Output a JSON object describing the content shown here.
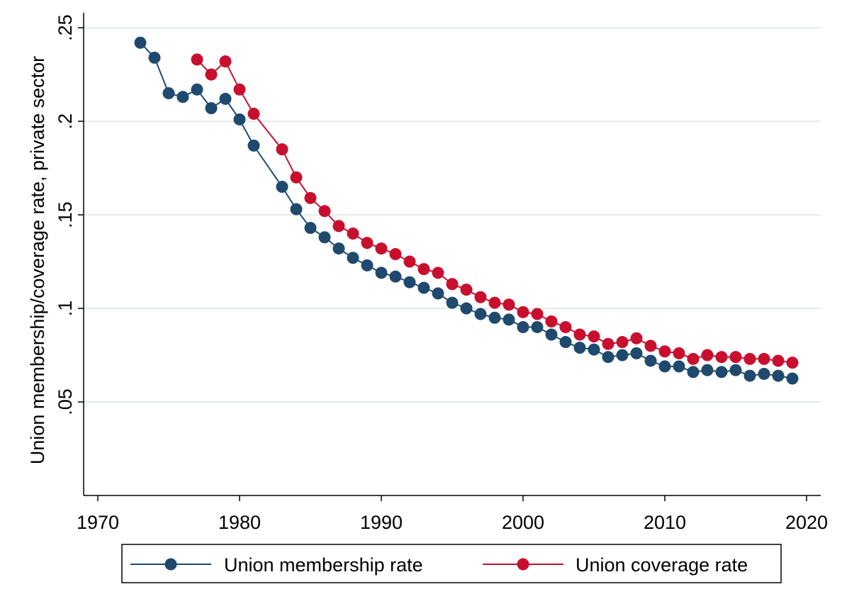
{
  "chart_data": {
    "type": "line",
    "title": "",
    "xlabel": "",
    "ylabel": "Union membership/coverage rate, private sector",
    "xlim": [
      1969,
      2021
    ],
    "ylim": [
      0,
      0.258
    ],
    "x_ticks": [
      1970,
      1980,
      1990,
      2000,
      2010,
      2020
    ],
    "x_tick_labels": [
      "1970",
      "1980",
      "1990",
      "2000",
      "2010",
      "2020"
    ],
    "y_ticks": [
      0.05,
      0.1,
      0.15,
      0.2,
      0.25
    ],
    "y_tick_labels": [
      ".05",
      ".1",
      ".15",
      ".2",
      ".25"
    ],
    "grid": true,
    "legend_position": "bottom",
    "series": [
      {
        "name": "Union membership rate",
        "color": "#1f4a6e",
        "x": [
          1973,
          1974,
          1975,
          1976,
          1977,
          1978,
          1979,
          1980,
          1981,
          1983,
          1984,
          1985,
          1986,
          1987,
          1988,
          1989,
          1990,
          1991,
          1992,
          1993,
          1994,
          1995,
          1996,
          1997,
          1998,
          1999,
          2000,
          2001,
          2002,
          2003,
          2004,
          2005,
          2006,
          2007,
          2008,
          2009,
          2010,
          2011,
          2012,
          2013,
          2014,
          2015,
          2016,
          2017,
          2018,
          2019
        ],
        "values": [
          0.242,
          0.234,
          0.215,
          0.213,
          0.217,
          0.207,
          0.212,
          0.201,
          0.187,
          0.165,
          0.153,
          0.143,
          0.138,
          0.132,
          0.127,
          0.123,
          0.119,
          0.117,
          0.114,
          0.111,
          0.108,
          0.103,
          0.1,
          0.097,
          0.095,
          0.094,
          0.09,
          0.09,
          0.086,
          0.082,
          0.079,
          0.078,
          0.074,
          0.075,
          0.076,
          0.072,
          0.069,
          0.069,
          0.066,
          0.067,
          0.066,
          0.067,
          0.064,
          0.065,
          0.064,
          0.0625
        ]
      },
      {
        "name": "Union coverage rate",
        "color": "#c8102e",
        "x": [
          1977,
          1978,
          1979,
          1980,
          1981,
          1983,
          1984,
          1985,
          1986,
          1987,
          1988,
          1989,
          1990,
          1991,
          1992,
          1993,
          1994,
          1995,
          1996,
          1997,
          1998,
          1999,
          2000,
          2001,
          2002,
          2003,
          2004,
          2005,
          2006,
          2007,
          2008,
          2009,
          2010,
          2011,
          2012,
          2013,
          2014,
          2015,
          2016,
          2017,
          2018,
          2019
        ],
        "values": [
          0.233,
          0.225,
          0.232,
          0.217,
          0.204,
          0.185,
          0.17,
          0.159,
          0.152,
          0.144,
          0.14,
          0.135,
          0.132,
          0.129,
          0.125,
          0.121,
          0.119,
          0.113,
          0.11,
          0.106,
          0.103,
          0.102,
          0.098,
          0.097,
          0.093,
          0.09,
          0.086,
          0.085,
          0.081,
          0.082,
          0.084,
          0.08,
          0.077,
          0.076,
          0.073,
          0.075,
          0.074,
          0.074,
          0.073,
          0.073,
          0.072,
          0.071
        ]
      }
    ]
  }
}
